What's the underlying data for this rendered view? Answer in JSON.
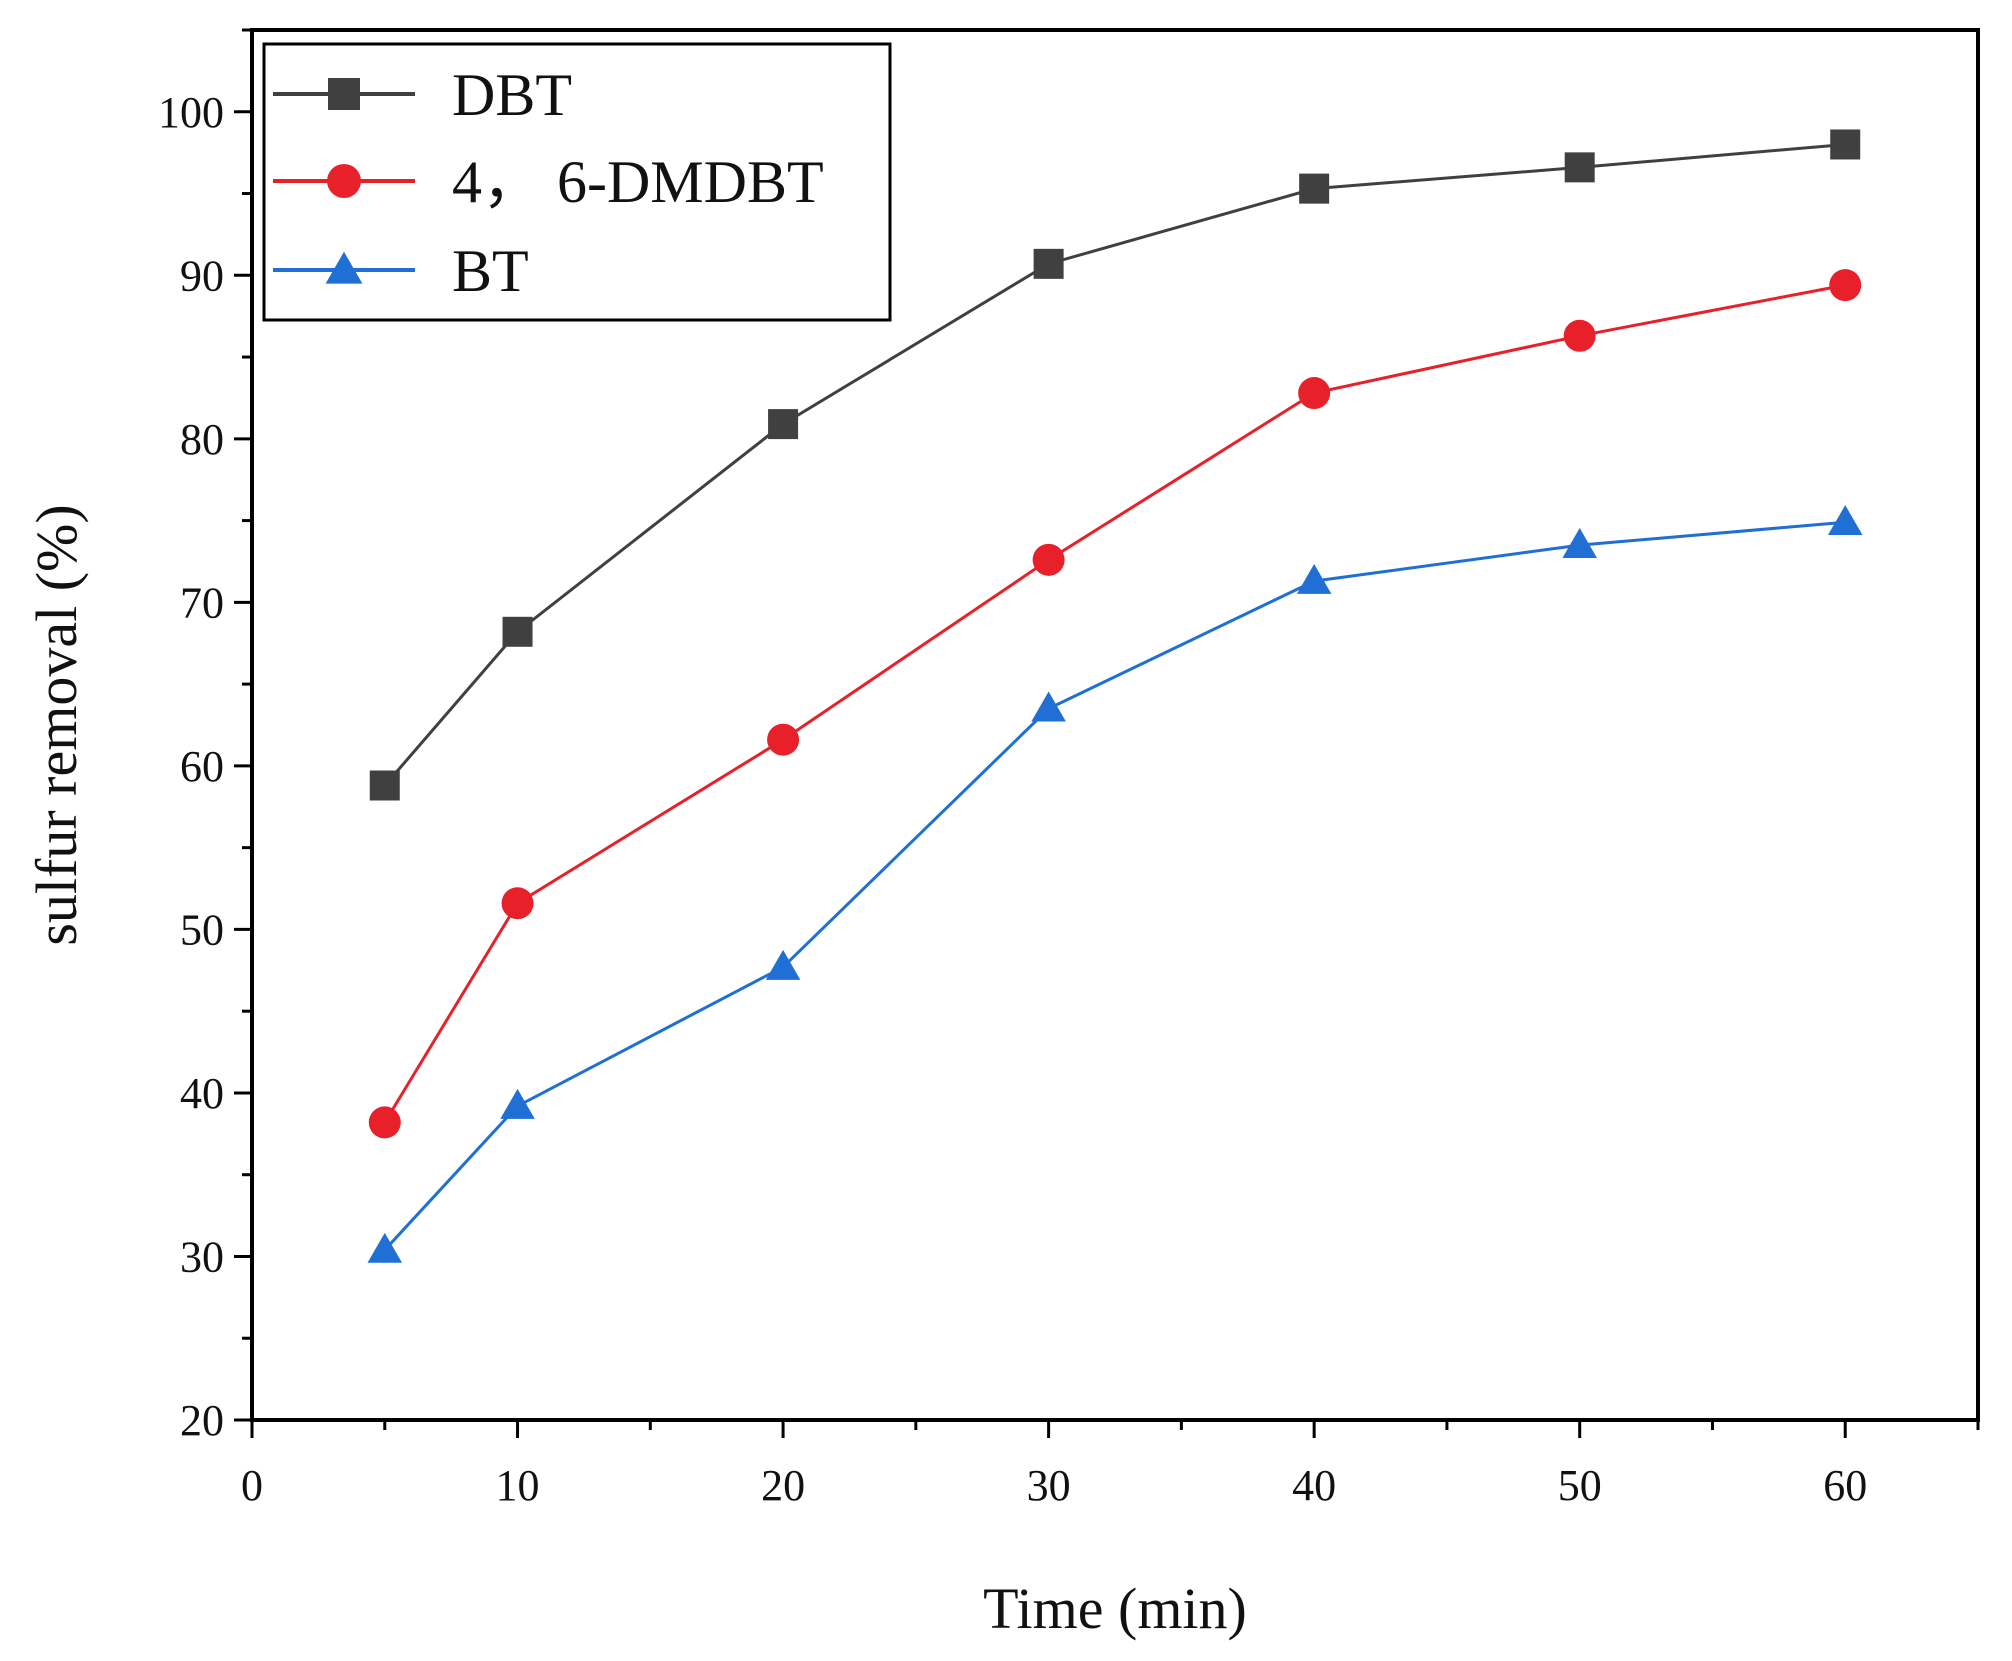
{
  "chart_data": {
    "type": "line",
    "xlabel": "Time (min)",
    "ylabel": "sulfur removal (%)",
    "xlim": [
      0,
      65
    ],
    "ylim": [
      20,
      105
    ],
    "x_ticks": [
      0,
      10,
      20,
      30,
      40,
      50,
      60
    ],
    "y_ticks": [
      20,
      30,
      40,
      50,
      60,
      70,
      80,
      90,
      100
    ],
    "grid": false,
    "legend_position": "top-left",
    "x": [
      5,
      10,
      20,
      30,
      40,
      50,
      60
    ],
    "series": [
      {
        "name": "DBT",
        "values": [
          58.8,
          68.2,
          80.9,
          90.7,
          95.3,
          96.6,
          98.0
        ],
        "color": "#404040",
        "marker": "square"
      },
      {
        "name": "4， 6-DMDBT",
        "values": [
          38.2,
          51.6,
          61.6,
          72.6,
          82.8,
          86.3,
          89.4
        ],
        "color": "#e8202a",
        "marker": "circle"
      },
      {
        "name": "BT",
        "values": [
          30.4,
          39.2,
          47.7,
          63.5,
          71.3,
          73.5,
          74.9
        ],
        "color": "#1f6fd4",
        "marker": "triangle"
      }
    ]
  }
}
